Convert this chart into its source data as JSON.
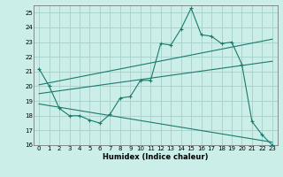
{
  "xlabel": "Humidex (Indice chaleur)",
  "bg_color": "#cceee8",
  "grid_color": "#aad4ce",
  "line_color": "#1a7a6e",
  "xlim": [
    -0.5,
    23.5
  ],
  "ylim": [
    16,
    25.5
  ],
  "xticks": [
    0,
    1,
    2,
    3,
    4,
    5,
    6,
    7,
    8,
    9,
    10,
    11,
    12,
    13,
    14,
    15,
    16,
    17,
    18,
    19,
    20,
    21,
    22,
    23
  ],
  "yticks": [
    16,
    17,
    18,
    19,
    20,
    21,
    22,
    23,
    24,
    25
  ],
  "line1_x": [
    0,
    1,
    2,
    3,
    4,
    5,
    6,
    7,
    8,
    9,
    10,
    11,
    12,
    13,
    14,
    15,
    16,
    17,
    18,
    19,
    20,
    21,
    22,
    23
  ],
  "line1_y": [
    21.2,
    20.0,
    18.5,
    18.0,
    18.0,
    17.7,
    17.5,
    18.1,
    19.2,
    19.3,
    20.4,
    20.4,
    22.9,
    22.8,
    23.9,
    25.3,
    23.5,
    23.4,
    22.9,
    23.0,
    21.5,
    17.6,
    16.7,
    16.0
  ],
  "line2_x": [
    0,
    23
  ],
  "line2_y": [
    20.1,
    23.2
  ],
  "line3_x": [
    0,
    23
  ],
  "line3_y": [
    19.5,
    21.7
  ],
  "line4_x": [
    0,
    23
  ],
  "line4_y": [
    18.8,
    16.2
  ]
}
